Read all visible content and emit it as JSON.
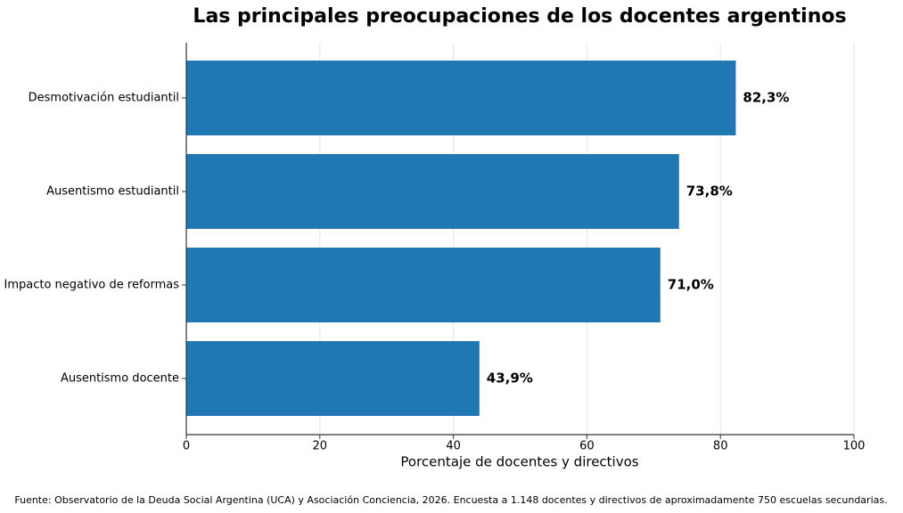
{
  "chart_data": {
    "type": "barh",
    "title": "Las principales preocupaciones de los docentes argentinos",
    "xlabel": "Porcentaje de docentes y directivos",
    "source": "Fuente: Observatorio de la Deuda Social Argentina (UCA) y Asociación Conciencia, 2026. Encuesta a 1.148 docentes y directivos de aproximadamente 750 escuelas secundarias.",
    "categories": [
      "Desmotivación estudiantil",
      "Ausentismo estudiantil",
      "Impacto negativo de reformas",
      "Ausentismo docente"
    ],
    "values": [
      82.3,
      73.8,
      71.0,
      43.9
    ],
    "value_labels": [
      "82,3%",
      "73,8%",
      "71,0%",
      "43,9%"
    ],
    "color": "#1f77b4",
    "xlim": [
      0,
      100
    ],
    "xticks": [
      0,
      20,
      40,
      60,
      80,
      100
    ],
    "grid": true
  }
}
